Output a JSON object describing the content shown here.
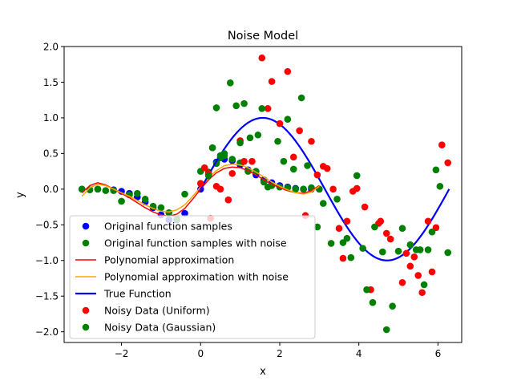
{
  "chart_data": {
    "type": "scatter",
    "title": "Noise Model",
    "xlabel": "x",
    "ylabel": "y",
    "xlim": [
      -3.45,
      6.6
    ],
    "ylim": [
      -2.15,
      2.0
    ],
    "x_ticks": [
      -2,
      0,
      2,
      4,
      6
    ],
    "x_tick_labels": [
      "−2",
      "0",
      "2",
      "4",
      "6"
    ],
    "y_ticks": [
      -2.0,
      -1.5,
      -1.0,
      -0.5,
      0.0,
      0.5,
      1.0,
      1.5,
      2.0
    ],
    "y_tick_labels": [
      "−2.0",
      "−1.5",
      "−1.0",
      "−0.5",
      "0.0",
      "0.5",
      "1.0",
      "1.5",
      "2.0"
    ],
    "grid": false,
    "legend_position": "lower-left",
    "series": [
      {
        "name": "Original function samples",
        "kind": "scatter",
        "color": "#0000ff",
        "points": [
          [
            -3.0,
            0.0
          ],
          [
            -2.6,
            0.0
          ],
          [
            -2.2,
            -0.01
          ],
          [
            -2.0,
            -0.03
          ],
          [
            -1.8,
            -0.06
          ],
          [
            -1.6,
            -0.11
          ],
          [
            -1.4,
            -0.18
          ],
          [
            -1.2,
            -0.26
          ],
          [
            -1.0,
            -0.36
          ],
          [
            -0.8,
            -0.43
          ],
          [
            -0.6,
            -0.43
          ],
          [
            -0.4,
            -0.34
          ],
          [
            0.0,
            0.0
          ],
          [
            0.2,
            0.2
          ],
          [
            0.4,
            0.38
          ],
          [
            0.6,
            0.42
          ],
          [
            0.8,
            0.4
          ],
          [
            1.0,
            0.34
          ],
          [
            1.2,
            0.27
          ],
          [
            1.4,
            0.2
          ],
          [
            1.6,
            0.13
          ],
          [
            1.8,
            0.09
          ],
          [
            2.0,
            0.05
          ],
          [
            2.2,
            0.03
          ],
          [
            2.4,
            0.01
          ],
          [
            2.6,
            0.0
          ],
          [
            2.8,
            0.0
          ],
          [
            3.0,
            0.0
          ]
        ]
      },
      {
        "name": "Original function samples with noise",
        "kind": "scatter",
        "color": "#008000",
        "points": [
          [
            -3.0,
            0.0
          ],
          [
            -2.8,
            -0.01
          ],
          [
            -2.6,
            0.0
          ],
          [
            -2.4,
            -0.02
          ],
          [
            -2.2,
            -0.02
          ],
          [
            -2.0,
            -0.17
          ],
          [
            -1.8,
            -0.08
          ],
          [
            -1.6,
            -0.06
          ],
          [
            -1.4,
            -0.14
          ],
          [
            -1.2,
            -0.24
          ],
          [
            -1.0,
            -0.26
          ],
          [
            -0.8,
            -0.33
          ],
          [
            -0.6,
            -0.42
          ],
          [
            -0.4,
            -0.07
          ],
          [
            0.0,
            0.25
          ],
          [
            0.2,
            0.24
          ],
          [
            0.3,
            0.58
          ],
          [
            0.4,
            0.36
          ],
          [
            0.5,
            0.44
          ],
          [
            0.6,
            0.47
          ],
          [
            0.8,
            0.42
          ],
          [
            1.0,
            0.37
          ],
          [
            1.2,
            0.25
          ],
          [
            1.4,
            0.25
          ],
          [
            1.6,
            0.1
          ],
          [
            1.8,
            0.05
          ],
          [
            2.0,
            0.03
          ],
          [
            2.2,
            0.02
          ],
          [
            2.4,
            0.0
          ],
          [
            2.6,
            0.0
          ],
          [
            2.8,
            0.02
          ],
          [
            3.0,
            0.0
          ]
        ]
      },
      {
        "name": "Polynomial approximation",
        "kind": "line",
        "color": "#ff0000",
        "points": [
          [
            -3.0,
            -0.05
          ],
          [
            -2.8,
            0.05
          ],
          [
            -2.6,
            0.09
          ],
          [
            -2.4,
            0.06
          ],
          [
            -2.2,
            0.0
          ],
          [
            -2.0,
            -0.06
          ],
          [
            -1.8,
            -0.12
          ],
          [
            -1.6,
            -0.19
          ],
          [
            -1.4,
            -0.26
          ],
          [
            -1.2,
            -0.32
          ],
          [
            -1.0,
            -0.36
          ],
          [
            -0.8,
            -0.38
          ],
          [
            -0.6,
            -0.35
          ],
          [
            -0.4,
            -0.27
          ],
          [
            -0.2,
            -0.14
          ],
          [
            0.0,
            0.0
          ],
          [
            0.2,
            0.13
          ],
          [
            0.4,
            0.23
          ],
          [
            0.6,
            0.29
          ],
          [
            0.8,
            0.31
          ],
          [
            1.0,
            0.3
          ],
          [
            1.2,
            0.26
          ],
          [
            1.4,
            0.2
          ],
          [
            1.6,
            0.13
          ],
          [
            1.8,
            0.07
          ],
          [
            2.0,
            0.02
          ],
          [
            2.2,
            -0.02
          ],
          [
            2.4,
            -0.05
          ],
          [
            2.6,
            -0.06
          ],
          [
            2.8,
            -0.02
          ],
          [
            3.0,
            0.05
          ]
        ]
      },
      {
        "name": "Polynomial approximation with noise",
        "kind": "line",
        "color": "#ffa500",
        "points": [
          [
            -3.0,
            -0.1
          ],
          [
            -2.8,
            0.02
          ],
          [
            -2.6,
            0.07
          ],
          [
            -2.4,
            0.05
          ],
          [
            -2.2,
            0.0
          ],
          [
            -2.0,
            -0.05
          ],
          [
            -1.8,
            -0.1
          ],
          [
            -1.6,
            -0.16
          ],
          [
            -1.4,
            -0.22
          ],
          [
            -1.2,
            -0.27
          ],
          [
            -1.0,
            -0.31
          ],
          [
            -0.8,
            -0.32
          ],
          [
            -0.6,
            -0.29
          ],
          [
            -0.4,
            -0.22
          ],
          [
            -0.2,
            -0.1
          ],
          [
            0.0,
            0.03
          ],
          [
            0.2,
            0.16
          ],
          [
            0.4,
            0.26
          ],
          [
            0.6,
            0.33
          ],
          [
            0.8,
            0.35
          ],
          [
            1.0,
            0.34
          ],
          [
            1.2,
            0.3
          ],
          [
            1.4,
            0.24
          ],
          [
            1.6,
            0.17
          ],
          [
            1.8,
            0.1
          ],
          [
            2.0,
            0.04
          ],
          [
            2.2,
            -0.01
          ],
          [
            2.4,
            -0.05
          ],
          [
            2.6,
            -0.07
          ],
          [
            2.8,
            -0.04
          ],
          [
            3.0,
            0.04
          ]
        ]
      },
      {
        "name": "True Function",
        "kind": "line",
        "color": "#0000ff",
        "function": "sin",
        "points": [
          [
            0.0,
            0.0
          ],
          [
            0.3,
            0.3
          ],
          [
            0.6,
            0.56
          ],
          [
            0.9,
            0.78
          ],
          [
            1.2,
            0.93
          ],
          [
            1.5708,
            1.0
          ],
          [
            1.9,
            0.95
          ],
          [
            2.2,
            0.81
          ],
          [
            2.5,
            0.6
          ],
          [
            2.8,
            0.33
          ],
          [
            3.1416,
            0.0
          ],
          [
            3.5,
            -0.35
          ],
          [
            3.8,
            -0.61
          ],
          [
            4.1,
            -0.82
          ],
          [
            4.4,
            -0.95
          ],
          [
            4.7124,
            -1.0
          ],
          [
            5.0,
            -0.96
          ],
          [
            5.3,
            -0.83
          ],
          [
            5.6,
            -0.63
          ],
          [
            5.9,
            -0.37
          ],
          [
            6.2832,
            0.0
          ]
        ]
      },
      {
        "name": "Noisy Data (Uniform)",
        "kind": "scatter",
        "color": "#ff0000",
        "points": [
          [
            0.0,
            0.08
          ],
          [
            0.1,
            0.3
          ],
          [
            0.2,
            0.22
          ],
          [
            0.25,
            -0.41
          ],
          [
            0.4,
            0.04
          ],
          [
            0.5,
            0.0
          ],
          [
            0.7,
            -0.15
          ],
          [
            0.8,
            0.22
          ],
          [
            1.0,
            0.68
          ],
          [
            1.1,
            0.39
          ],
          [
            1.3,
            0.39
          ],
          [
            1.55,
            1.84
          ],
          [
            1.7,
            1.13
          ],
          [
            1.8,
            1.51
          ],
          [
            2.0,
            0.92
          ],
          [
            2.2,
            1.65
          ],
          [
            2.35,
            0.45
          ],
          [
            2.5,
            0.82
          ],
          [
            2.65,
            -0.37
          ],
          [
            2.8,
            0.67
          ],
          [
            2.95,
            0.2
          ],
          [
            3.1,
            0.32
          ],
          [
            3.2,
            0.29
          ],
          [
            3.35,
            0.0
          ],
          [
            3.5,
            -0.55
          ],
          [
            3.6,
            -0.97
          ],
          [
            3.7,
            -0.45
          ],
          [
            3.85,
            -0.03
          ],
          [
            3.95,
            0.01
          ],
          [
            4.15,
            -0.25
          ],
          [
            4.3,
            -1.41
          ],
          [
            4.5,
            -0.48
          ],
          [
            4.55,
            -0.45
          ],
          [
            4.7,
            -0.62
          ],
          [
            4.8,
            -0.7
          ],
          [
            5.1,
            -1.31
          ],
          [
            5.2,
            -0.9
          ],
          [
            5.3,
            -1.08
          ],
          [
            5.4,
            -0.95
          ],
          [
            5.5,
            -1.21
          ],
          [
            5.6,
            -1.45
          ],
          [
            5.75,
            -0.45
          ],
          [
            5.85,
            -1.16
          ],
          [
            5.95,
            -0.54
          ],
          [
            6.1,
            0.62
          ],
          [
            6.25,
            0.37
          ]
        ]
      },
      {
        "name": "Noisy Data (Gaussian)",
        "kind": "scatter",
        "color": "#008000",
        "points": [
          [
            0.2,
            0.19
          ],
          [
            0.3,
            0.58
          ],
          [
            0.4,
            1.14
          ],
          [
            0.5,
            0.47
          ],
          [
            0.6,
            0.5
          ],
          [
            0.75,
            1.49
          ],
          [
            0.9,
            1.17
          ],
          [
            1.0,
            0.65
          ],
          [
            1.1,
            1.2
          ],
          [
            1.25,
            0.72
          ],
          [
            1.45,
            0.76
          ],
          [
            1.55,
            1.13
          ],
          [
            1.7,
            0.03
          ],
          [
            1.95,
            0.67
          ],
          [
            2.1,
            0.39
          ],
          [
            2.2,
            0.98
          ],
          [
            2.35,
            0.28
          ],
          [
            2.55,
            1.28
          ],
          [
            2.7,
            0.33
          ],
          [
            2.95,
            -0.53
          ],
          [
            3.1,
            -0.2
          ],
          [
            3.3,
            -0.76
          ],
          [
            3.45,
            -0.14
          ],
          [
            3.6,
            -0.75
          ],
          [
            3.7,
            -0.69
          ],
          [
            3.8,
            -0.96
          ],
          [
            3.95,
            0.19
          ],
          [
            4.1,
            -0.83
          ],
          [
            4.2,
            -1.41
          ],
          [
            4.35,
            -1.59
          ],
          [
            4.4,
            -0.53
          ],
          [
            4.6,
            -0.88
          ],
          [
            4.7,
            -1.97
          ],
          [
            4.85,
            -1.64
          ],
          [
            5.0,
            -0.87
          ],
          [
            5.1,
            -0.55
          ],
          [
            5.3,
            -0.78
          ],
          [
            5.45,
            -0.85
          ],
          [
            5.55,
            -0.85
          ],
          [
            5.65,
            -1.34
          ],
          [
            5.75,
            -0.85
          ],
          [
            5.85,
            -0.6
          ],
          [
            5.95,
            0.27
          ],
          [
            6.05,
            0.04
          ],
          [
            6.25,
            -0.89
          ]
        ]
      }
    ]
  }
}
